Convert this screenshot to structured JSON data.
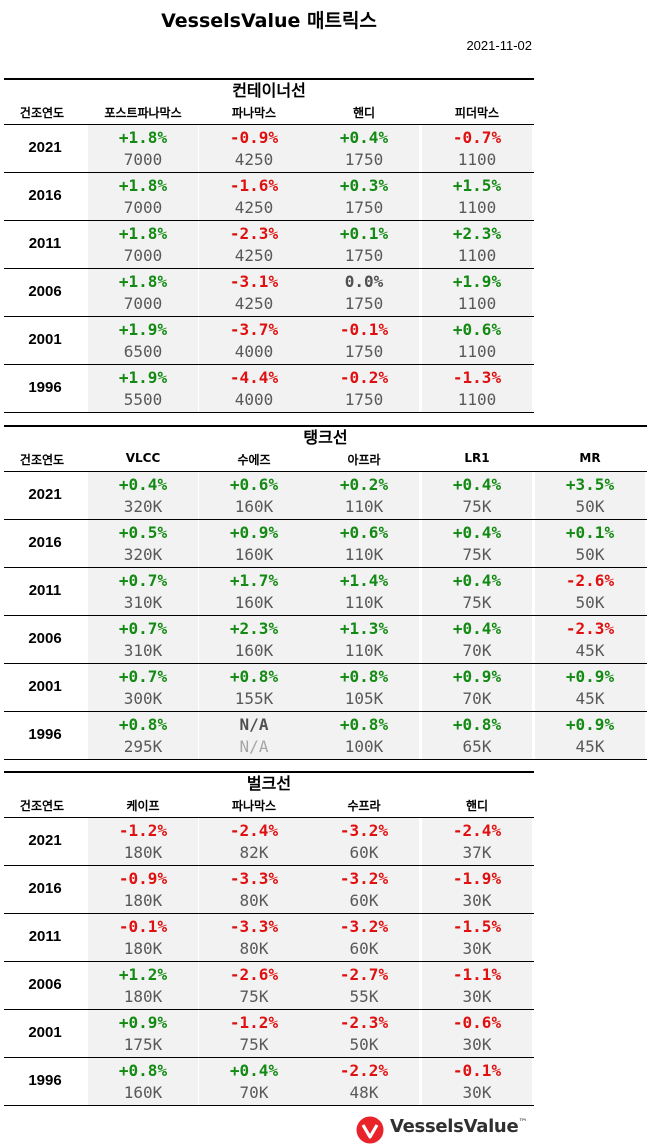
{
  "title": "VesselsValue 매트릭스",
  "date": "2021-11-02",
  "colors": {
    "up": "#138a13",
    "down": "#e01010",
    "flat": "#505050",
    "na": "#505050",
    "value": "#595959",
    "cell_bg": "#f2f2f2",
    "logo_red": "#e8232a"
  },
  "logo": {
    "icon": "vesselsvalue-logo-icon",
    "text": "VesselsValue",
    "tm": "™"
  },
  "sections": [
    {
      "name": "컨테이너선",
      "year_label": "건조연도",
      "columns": [
        "포스트파나막스",
        "파나막스",
        "핸디",
        "피더막스"
      ],
      "rows": [
        {
          "year": "2021",
          "cells": [
            {
              "chg": "+1.8%",
              "val": "7000"
            },
            {
              "chg": "-0.9%",
              "val": "4250"
            },
            {
              "chg": "+0.4%",
              "val": "1750"
            },
            {
              "chg": "-0.7%",
              "val": "1100"
            }
          ]
        },
        {
          "year": "2016",
          "cells": [
            {
              "chg": "+1.8%",
              "val": "7000"
            },
            {
              "chg": "-1.6%",
              "val": "4250"
            },
            {
              "chg": "+0.3%",
              "val": "1750"
            },
            {
              "chg": "+1.5%",
              "val": "1100"
            }
          ]
        },
        {
          "year": "2011",
          "cells": [
            {
              "chg": "+1.8%",
              "val": "7000"
            },
            {
              "chg": "-2.3%",
              "val": "4250"
            },
            {
              "chg": "+0.1%",
              "val": "1750"
            },
            {
              "chg": "+2.3%",
              "val": "1100"
            }
          ]
        },
        {
          "year": "2006",
          "cells": [
            {
              "chg": "+1.8%",
              "val": "7000"
            },
            {
              "chg": "-3.1%",
              "val": "4250"
            },
            {
              "chg": "0.0%",
              "val": "1750"
            },
            {
              "chg": "+1.9%",
              "val": "1100"
            }
          ]
        },
        {
          "year": "2001",
          "cells": [
            {
              "chg": "+1.9%",
              "val": "6500"
            },
            {
              "chg": "-3.7%",
              "val": "4000"
            },
            {
              "chg": "-0.1%",
              "val": "1750"
            },
            {
              "chg": "+0.6%",
              "val": "1100"
            }
          ]
        },
        {
          "year": "1996",
          "cells": [
            {
              "chg": "+1.9%",
              "val": "5500"
            },
            {
              "chg": "-4.4%",
              "val": "4000"
            },
            {
              "chg": "-0.2%",
              "val": "1750"
            },
            {
              "chg": "-1.3%",
              "val": "1100"
            }
          ]
        }
      ]
    },
    {
      "name": "탱크선",
      "year_label": "건조연도",
      "columns": [
        "VLCC",
        "수에즈",
        "아프라",
        "LR1",
        "MR"
      ],
      "rows": [
        {
          "year": "2021",
          "cells": [
            {
              "chg": "+0.4%",
              "val": "320K"
            },
            {
              "chg": "+0.6%",
              "val": "160K"
            },
            {
              "chg": "+0.2%",
              "val": "110K"
            },
            {
              "chg": "+0.4%",
              "val": "75K"
            },
            {
              "chg": "+3.5%",
              "val": "50K"
            }
          ]
        },
        {
          "year": "2016",
          "cells": [
            {
              "chg": "+0.5%",
              "val": "320K"
            },
            {
              "chg": "+0.9%",
              "val": "160K"
            },
            {
              "chg": "+0.6%",
              "val": "110K"
            },
            {
              "chg": "+0.4%",
              "val": "75K"
            },
            {
              "chg": "+0.1%",
              "val": "50K"
            }
          ]
        },
        {
          "year": "2011",
          "cells": [
            {
              "chg": "+0.7%",
              "val": "310K"
            },
            {
              "chg": "+1.7%",
              "val": "160K"
            },
            {
              "chg": "+1.4%",
              "val": "110K"
            },
            {
              "chg": "+0.4%",
              "val": "75K"
            },
            {
              "chg": "-2.6%",
              "val": "50K"
            }
          ]
        },
        {
          "year": "2006",
          "cells": [
            {
              "chg": "+0.7%",
              "val": "310K"
            },
            {
              "chg": "+2.3%",
              "val": "160K"
            },
            {
              "chg": "+1.3%",
              "val": "110K"
            },
            {
              "chg": "+0.4%",
              "val": "70K"
            },
            {
              "chg": "-2.3%",
              "val": "45K"
            }
          ]
        },
        {
          "year": "2001",
          "cells": [
            {
              "chg": "+0.7%",
              "val": "300K"
            },
            {
              "chg": "+0.8%",
              "val": "155K"
            },
            {
              "chg": "+0.8%",
              "val": "105K"
            },
            {
              "chg": "+0.9%",
              "val": "70K"
            },
            {
              "chg": "+0.9%",
              "val": "45K"
            }
          ]
        },
        {
          "year": "1996",
          "cells": [
            {
              "chg": "+0.8%",
              "val": "295K"
            },
            {
              "chg": "N/A",
              "val": "N/A"
            },
            {
              "chg": "+0.8%",
              "val": "100K"
            },
            {
              "chg": "+0.8%",
              "val": "65K"
            },
            {
              "chg": "+0.9%",
              "val": "45K"
            }
          ]
        }
      ]
    },
    {
      "name": "벌크선",
      "year_label": "건조연도",
      "columns": [
        "케이프",
        "파나막스",
        "수프라",
        "핸디"
      ],
      "rows": [
        {
          "year": "2021",
          "cells": [
            {
              "chg": "-1.2%",
              "val": "180K"
            },
            {
              "chg": "-2.4%",
              "val": "82K"
            },
            {
              "chg": "-3.2%",
              "val": "60K"
            },
            {
              "chg": "-2.4%",
              "val": "37K"
            }
          ]
        },
        {
          "year": "2016",
          "cells": [
            {
              "chg": "-0.9%",
              "val": "180K"
            },
            {
              "chg": "-3.3%",
              "val": "80K"
            },
            {
              "chg": "-3.2%",
              "val": "60K"
            },
            {
              "chg": "-1.9%",
              "val": "30K"
            }
          ]
        },
        {
          "year": "2011",
          "cells": [
            {
              "chg": "-0.1%",
              "val": "180K"
            },
            {
              "chg": "-3.3%",
              "val": "80K"
            },
            {
              "chg": "-3.2%",
              "val": "60K"
            },
            {
              "chg": "-1.5%",
              "val": "30K"
            }
          ]
        },
        {
          "year": "2006",
          "cells": [
            {
              "chg": "+1.2%",
              "val": "180K"
            },
            {
              "chg": "-2.6%",
              "val": "75K"
            },
            {
              "chg": "-2.7%",
              "val": "55K"
            },
            {
              "chg": "-1.1%",
              "val": "30K"
            }
          ]
        },
        {
          "year": "2001",
          "cells": [
            {
              "chg": "+0.9%",
              "val": "175K"
            },
            {
              "chg": "-1.2%",
              "val": "75K"
            },
            {
              "chg": "-2.3%",
              "val": "50K"
            },
            {
              "chg": "-0.6%",
              "val": "30K"
            }
          ]
        },
        {
          "year": "1996",
          "cells": [
            {
              "chg": "+0.8%",
              "val": "160K"
            },
            {
              "chg": "+0.4%",
              "val": "70K"
            },
            {
              "chg": "-2.2%",
              "val": "48K"
            },
            {
              "chg": "-0.1%",
              "val": "30K"
            }
          ]
        }
      ]
    }
  ]
}
